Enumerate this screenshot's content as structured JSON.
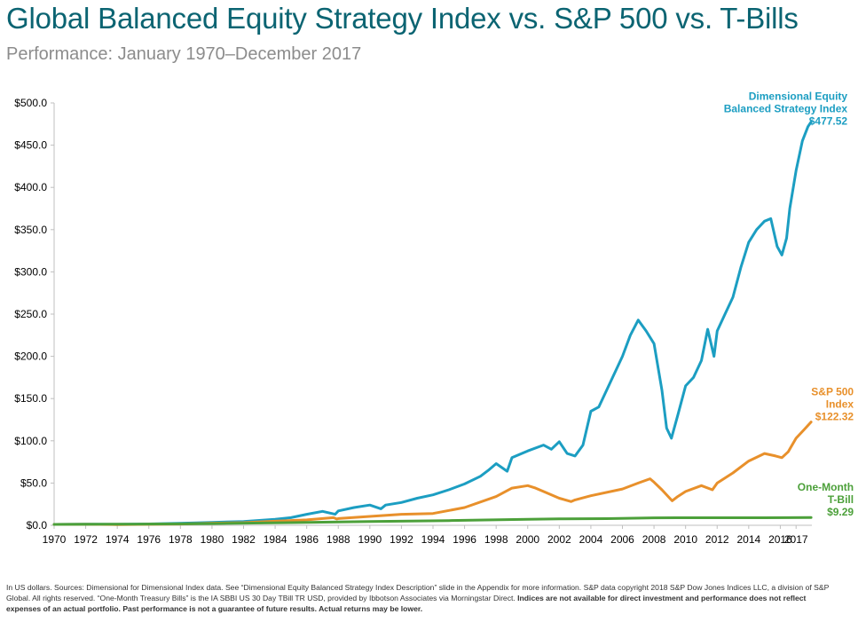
{
  "header": {
    "title": "Global Balanced Equity Strategy Index vs. S&P 500 vs. T-Bills",
    "subtitle": "Performance: January 1970–December 2017"
  },
  "chart_data": {
    "type": "line",
    "x_ticks": [
      "1970",
      "1972",
      "1974",
      "1976",
      "1978",
      "1980",
      "1982",
      "1984",
      "1986",
      "1988",
      "1990",
      "1992",
      "1994",
      "1996",
      "1998",
      "2000",
      "2002",
      "2004",
      "2006",
      "2008",
      "2010",
      "2012",
      "2014",
      "2016",
      "2017"
    ],
    "y_ticks": [
      "$0.0",
      "$50.0",
      "$100.0",
      "$150.0",
      "$200.0",
      "$250.0",
      "$300.0",
      "$350.0",
      "$400.0",
      "$450.0",
      "$500.0"
    ],
    "xlim": [
      1970,
      2018
    ],
    "ylim": [
      0,
      500
    ],
    "grid": false,
    "series": [
      {
        "label_lines": [
          "Dimensional Equity",
          "Balanced Strategy Index",
          "$477.52"
        ],
        "color": "#1c9ec2",
        "points": [
          [
            1970,
            1
          ],
          [
            1972,
            1.3
          ],
          [
            1974,
            1.2
          ],
          [
            1976,
            1.6
          ],
          [
            1978,
            2.4
          ],
          [
            1980,
            3.5
          ],
          [
            1982,
            4.5
          ],
          [
            1984,
            7
          ],
          [
            1985,
            9
          ],
          [
            1986,
            13
          ],
          [
            1987,
            16.5
          ],
          [
            1987.8,
            13
          ],
          [
            1988,
            17
          ],
          [
            1989,
            21
          ],
          [
            1990,
            24
          ],
          [
            1990.7,
            19.5
          ],
          [
            1991,
            24
          ],
          [
            1992,
            27
          ],
          [
            1993,
            32
          ],
          [
            1994,
            36
          ],
          [
            1995,
            42
          ],
          [
            1996,
            49
          ],
          [
            1997,
            58
          ],
          [
            1997.5,
            65
          ],
          [
            1998,
            73
          ],
          [
            1998.7,
            64
          ],
          [
            1999,
            80
          ],
          [
            2000,
            88
          ],
          [
            2001,
            95
          ],
          [
            2001.5,
            90
          ],
          [
            2002,
            99
          ],
          [
            2002.5,
            85
          ],
          [
            2003,
            82
          ],
          [
            2003.5,
            95
          ],
          [
            2004,
            135
          ],
          [
            2004.5,
            140
          ],
          [
            2005,
            160
          ],
          [
            2006,
            200
          ],
          [
            2006.5,
            225
          ],
          [
            2007,
            243
          ],
          [
            2007.5,
            230
          ],
          [
            2008,
            215
          ],
          [
            2008.5,
            160
          ],
          [
            2008.8,
            115
          ],
          [
            2009.1,
            103
          ],
          [
            2009.5,
            130
          ],
          [
            2010,
            165
          ],
          [
            2010.5,
            175
          ],
          [
            2011,
            195
          ],
          [
            2011.4,
            232
          ],
          [
            2011.8,
            200
          ],
          [
            2012,
            230
          ],
          [
            2012.5,
            250
          ],
          [
            2013,
            270
          ],
          [
            2013.5,
            305
          ],
          [
            2014,
            335
          ],
          [
            2014.5,
            350
          ],
          [
            2015,
            360
          ],
          [
            2015.4,
            363
          ],
          [
            2015.8,
            330
          ],
          [
            2016.1,
            320
          ],
          [
            2016.4,
            340
          ],
          [
            2016.6,
            375
          ],
          [
            2017,
            420
          ],
          [
            2017.4,
            455
          ],
          [
            2017.75,
            472
          ],
          [
            2017.95,
            477.52
          ]
        ]
      },
      {
        "label_lines": [
          "S&P 500",
          "Index",
          "$122.32"
        ],
        "color": "#e8902b",
        "points": [
          [
            1970,
            1
          ],
          [
            1972,
            1.2
          ],
          [
            1974,
            0.8
          ],
          [
            1976,
            1.2
          ],
          [
            1978,
            1.5
          ],
          [
            1980,
            2.5
          ],
          [
            1982,
            3.2
          ],
          [
            1984,
            4.8
          ],
          [
            1986,
            6.4
          ],
          [
            1987.7,
            9
          ],
          [
            1987.9,
            7.5
          ],
          [
            1988,
            8
          ],
          [
            1990,
            10.5
          ],
          [
            1992,
            13
          ],
          [
            1994,
            14
          ],
          [
            1996,
            21
          ],
          [
            1998,
            34
          ],
          [
            1999,
            44
          ],
          [
            2000,
            47
          ],
          [
            2000.5,
            44
          ],
          [
            2001,
            40
          ],
          [
            2002,
            32
          ],
          [
            2002.75,
            28
          ],
          [
            2003,
            30
          ],
          [
            2004,
            35
          ],
          [
            2006,
            43
          ],
          [
            2007,
            50
          ],
          [
            2007.75,
            55
          ],
          [
            2008,
            51
          ],
          [
            2008.5,
            42
          ],
          [
            2009.15,
            29
          ],
          [
            2009.5,
            34
          ],
          [
            2010,
            40
          ],
          [
            2011,
            47
          ],
          [
            2011.7,
            42
          ],
          [
            2012,
            50
          ],
          [
            2013,
            62
          ],
          [
            2014,
            76
          ],
          [
            2015,
            85
          ],
          [
            2015.7,
            82
          ],
          [
            2016.1,
            80
          ],
          [
            2016.5,
            87
          ],
          [
            2017,
            103
          ],
          [
            2017.5,
            113
          ],
          [
            2017.95,
            122.32
          ]
        ]
      },
      {
        "label_lines": [
          "One-Month",
          "T-Bill",
          "$9.29"
        ],
        "color": "#4ca03a",
        "points": [
          [
            1970,
            1
          ],
          [
            1975,
            1.4
          ],
          [
            1980,
            2
          ],
          [
            1985,
            3.2
          ],
          [
            1990,
            4.5
          ],
          [
            1995,
            5.6
          ],
          [
            2000,
            7.1
          ],
          [
            2002,
            7.6
          ],
          [
            2005,
            7.9
          ],
          [
            2008,
            8.8
          ],
          [
            2010,
            8.9
          ],
          [
            2015,
            8.95
          ],
          [
            2017.95,
            9.29
          ]
        ]
      }
    ]
  },
  "footnote": {
    "part1": "In US dollars. Sources: Dimensional for Dimensional Index data. See “Dimensional Equity Balanced Strategy Index Description” slide in the Appendix for more information.  S&P data copyright 2018 S&P Dow Jones Indices LLC, a division of S&P Global. All rights reserved. “One-Month Treasury Bills” is the IA SBBI US 30 Day TBill TR USD, provided by Ibbotson Associates via Morningstar Direct. ",
    "part2": "Indices are not available for direct investment and performance does not reflect expenses of an actual portfolio. Past performance is not a guarantee of future results. Actual returns may be lower."
  }
}
